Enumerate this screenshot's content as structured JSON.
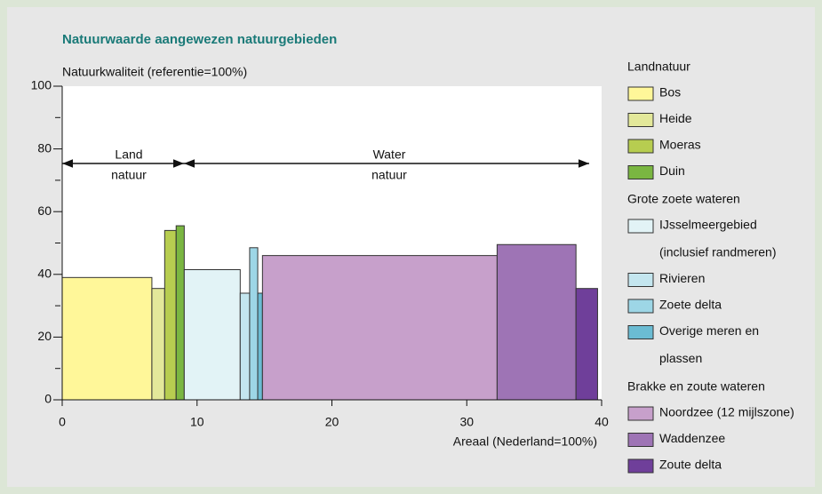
{
  "chart_data": {
    "type": "bar",
    "title": "Natuurwaarde aangewezen natuurgebieden",
    "y_label": "Natuurkwaliteit (referentie=100%)",
    "x_label": "Areaal (Nederland=100%)",
    "xlim": [
      0,
      40
    ],
    "xticks": [
      0,
      10,
      20,
      30,
      40
    ],
    "ylim": [
      0,
      100
    ],
    "yticks": [
      0,
      20,
      40,
      60,
      80,
      100
    ],
    "yminor_ticks": [
      10,
      30,
      50,
      70,
      90
    ],
    "annotations": [
      {
        "text": [
          "Land",
          "natuur"
        ]
      },
      {
        "text": [
          "Water",
          "natuur"
        ]
      }
    ],
    "bins": [
      0,
      6.65,
      7.6,
      8.45,
      9.05,
      13.2,
      13.9,
      14.5,
      14.85,
      32.25,
      38.1,
      39.7
    ],
    "groups": [
      {
        "name": "Landnatuur",
        "items": [
          {
            "name": [
              "Bos"
            ],
            "color": "#fff799",
            "value": 39
          },
          {
            "name": [
              "Heide"
            ],
            "color": "#e3e89a",
            "value": 35.5
          },
          {
            "name": [
              "Moeras"
            ],
            "color": "#b7cd50",
            "value": 54
          },
          {
            "name": [
              "Duin"
            ],
            "color": "#7ab641",
            "value": 55.5
          }
        ]
      },
      {
        "name": "Grote zoete wateren",
        "items": [
          {
            "name": [
              "IJsselmeergebied",
              "(inclusief randmeren)"
            ],
            "color": "#e2f3f6",
            "value": 41.5
          },
          {
            "name": [
              "Rivieren"
            ],
            "color": "#c4e6ef",
            "value": 34
          },
          {
            "name": [
              "Zoete delta"
            ],
            "color": "#9dd6e6",
            "value": 48.5
          },
          {
            "name": [
              "Overige meren en",
              "plassen"
            ],
            "color": "#6bbcd3",
            "value": 34
          }
        ]
      },
      {
        "name": "Brakke en zoute wateren",
        "items": [
          {
            "name": [
              "Noordzee (12 mijlszone)"
            ],
            "color": "#c7a0cb",
            "value": 46
          },
          {
            "name": [
              "Waddenzee"
            ],
            "color": "#9e74b5",
            "value": 49.5
          },
          {
            "name": [
              "Zoute delta"
            ],
            "color": "#6f3f9a",
            "value": 35.5
          }
        ]
      }
    ]
  }
}
